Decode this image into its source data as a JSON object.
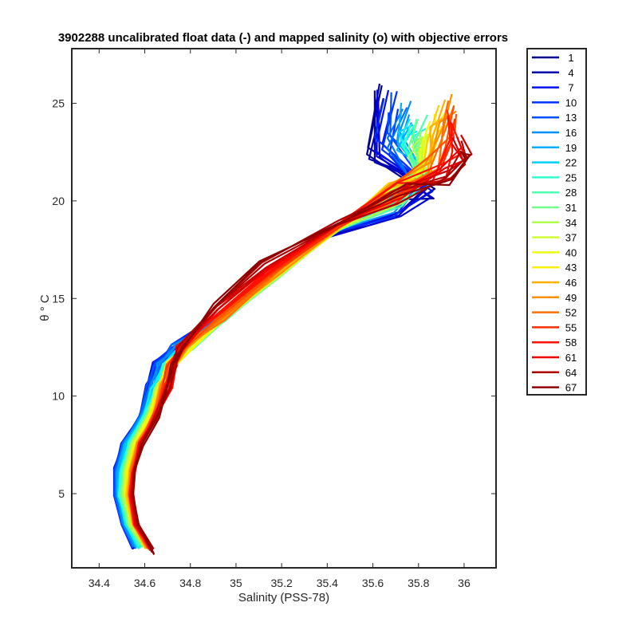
{
  "chart_data": {
    "type": "line",
    "title": "3902288 uncalibrated float data (-) and mapped salinity (o) with objective errors",
    "xlabel": "Salinity (PSS-78)",
    "ylabel": "θ ° C",
    "xlim": [
      34.28,
      36.14
    ],
    "ylim": [
      1.2,
      27.8
    ],
    "xticks": [
      "34.4",
      "34.6",
      "34.8",
      "35",
      "35.2",
      "35.4",
      "35.6",
      "35.8",
      "36"
    ],
    "yticks": [
      "5",
      "10",
      "15",
      "20",
      "25"
    ],
    "xtick_values": [
      34.4,
      34.6,
      34.8,
      35.0,
      35.2,
      35.4,
      35.6,
      35.8,
      36.0
    ],
    "ytick_values": [
      5,
      10,
      15,
      20,
      25
    ],
    "grid": false,
    "legend_position": "outside-right",
    "colormap": "jet",
    "legend": [
      "1",
      "4",
      "7",
      "10",
      "13",
      "16",
      "19",
      "22",
      "25",
      "28",
      "31",
      "34",
      "37",
      "40",
      "43",
      "46",
      "49",
      "52",
      "55",
      "58",
      "61",
      "64",
      "67"
    ],
    "legend_colors": [
      "#00008f",
      "#0000af",
      "#0000cf",
      "#0010ef",
      "#0030ff",
      "#0050ff",
      "#0070ff",
      "#0090ff",
      "#00b0ff",
      "#00d0ff",
      "#10efef",
      "#30ffcf",
      "#50ffaf",
      "#70ff8f",
      "#90ff6f",
      "#b0ff50",
      "#d0ff30",
      "#efff10",
      "#ffef00",
      "#ffcf00",
      "#ffaf00",
      "#ff8f00",
      "#ff7000",
      "#ff5000",
      "#ff3000",
      "#ff1000",
      "#ef0000",
      "#cf0000",
      "#af0000",
      "#8f0000"
    ],
    "series_anchors": [
      {
        "name": "1",
        "S": [
          34.55,
          34.5,
          34.47,
          34.47,
          34.5,
          34.58,
          34.62,
          34.66,
          34.74,
          34.9,
          35.1,
          35.4,
          35.7,
          35.86,
          35.6,
          35.62
        ],
        "T": [
          2.3,
          3.5,
          5.0,
          6.2,
          7.5,
          9.0,
          10.5,
          11.6,
          12.5,
          14.0,
          16.0,
          18.2,
          19.6,
          20.5,
          22.2,
          25.5
        ]
      },
      {
        "name": "13",
        "S": [
          34.55,
          34.5,
          34.47,
          34.47,
          34.5,
          34.58,
          34.62,
          34.66,
          34.73,
          34.92,
          35.15,
          35.4,
          35.68,
          35.82,
          35.65,
          35.7
        ],
        "T": [
          2.3,
          3.5,
          5.0,
          6.2,
          7.5,
          9.0,
          10.5,
          11.6,
          12.5,
          14.0,
          16.2,
          18.3,
          19.8,
          21.0,
          23.0,
          25.0
        ]
      },
      {
        "name": "25",
        "S": [
          34.58,
          34.52,
          34.49,
          34.5,
          34.53,
          34.6,
          34.65,
          34.7,
          34.78,
          34.95,
          35.2,
          35.45,
          35.7,
          35.82,
          35.75,
          35.8
        ],
        "T": [
          2.3,
          3.5,
          5.0,
          6.2,
          7.5,
          9.0,
          10.5,
          11.6,
          12.5,
          14.0,
          16.3,
          18.6,
          20.2,
          21.4,
          23.0,
          24.0
        ]
      },
      {
        "name": "37",
        "S": [
          34.6,
          34.54,
          34.51,
          34.52,
          34.55,
          34.62,
          34.67,
          34.72,
          34.8,
          34.95,
          35.2,
          35.45,
          35.7,
          35.82,
          35.8,
          35.85
        ],
        "T": [
          2.3,
          3.5,
          5.0,
          6.2,
          7.5,
          9.0,
          10.5,
          11.6,
          12.5,
          14.0,
          16.3,
          18.6,
          20.2,
          21.2,
          22.5,
          23.5
        ]
      },
      {
        "name": "49",
        "S": [
          34.61,
          34.55,
          34.53,
          34.54,
          34.57,
          34.64,
          34.69,
          34.72,
          34.77,
          34.95,
          35.2,
          35.45,
          35.65,
          35.85,
          35.9,
          35.95
        ],
        "T": [
          2.3,
          3.5,
          5.0,
          6.2,
          7.5,
          9.0,
          10.5,
          11.6,
          12.5,
          14.0,
          16.4,
          18.7,
          20.5,
          22.0,
          24.0,
          25.0
        ]
      },
      {
        "name": "61",
        "S": [
          34.63,
          34.56,
          34.54,
          34.55,
          34.58,
          34.65,
          34.7,
          34.72,
          34.76,
          34.92,
          35.15,
          35.45,
          35.7,
          35.9,
          36.0,
          35.95
        ],
        "T": [
          2.1,
          3.5,
          5.0,
          6.2,
          7.5,
          9.0,
          10.5,
          11.6,
          12.5,
          14.5,
          16.6,
          18.8,
          20.3,
          21.3,
          22.4,
          23.2
        ]
      },
      {
        "name": "67",
        "S": [
          34.64,
          34.57,
          34.55,
          34.56,
          34.59,
          34.66,
          34.71,
          34.72,
          34.75,
          34.9,
          35.1,
          35.45,
          35.75,
          35.95,
          36.02,
          36.02
        ],
        "T": [
          2.0,
          3.5,
          5.0,
          6.2,
          7.5,
          9.0,
          10.5,
          11.6,
          12.5,
          14.7,
          16.8,
          18.9,
          20.3,
          21.3,
          22.1,
          22.6
        ]
      }
    ]
  }
}
